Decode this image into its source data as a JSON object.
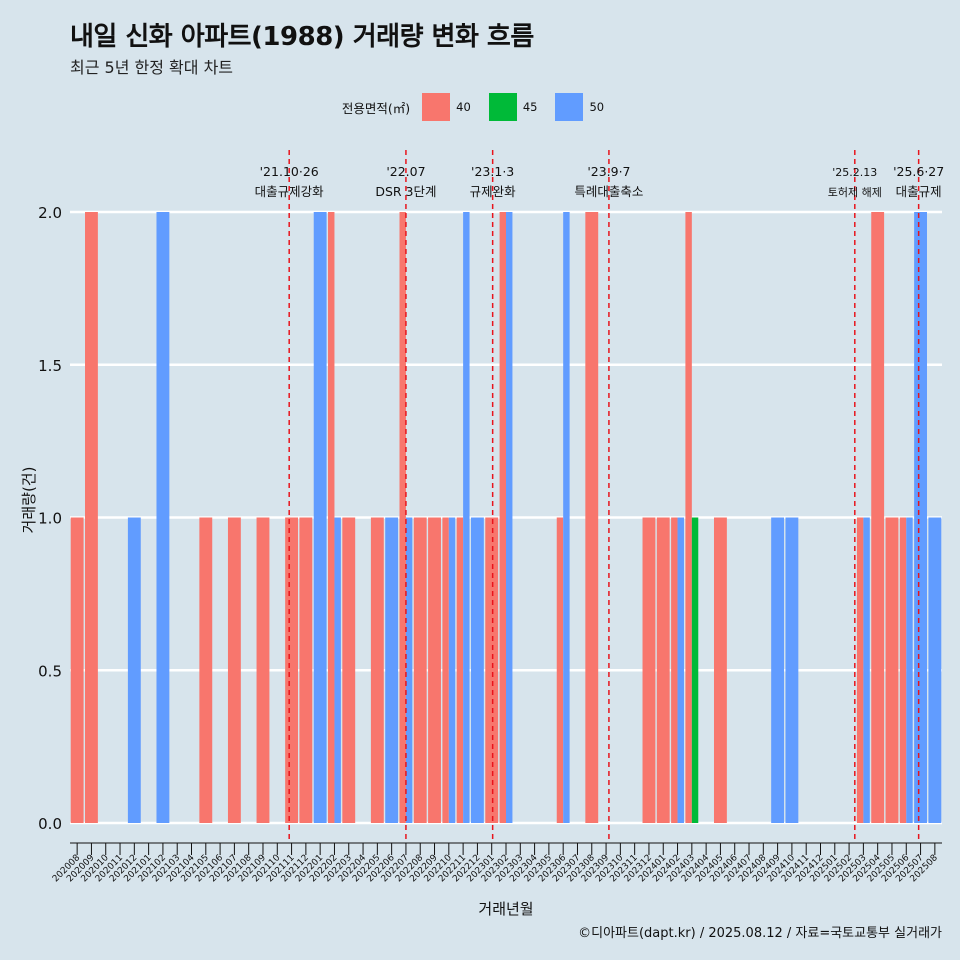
{
  "header": {
    "title": "내일 신화 아파트(1988) 거래량 변화 흐름",
    "subtitle": "최근 5년 한정 확대 차트"
  },
  "legend": {
    "title": "전용면적(㎡)",
    "items": [
      {
        "label": "40",
        "color": "#F8766D"
      },
      {
        "label": "45",
        "color": "#00BA38"
      },
      {
        "label": "50",
        "color": "#619CFF"
      }
    ]
  },
  "caption": "©디아파트(dapt.kr) / 2025.08.12 / 자료=국토교통부 실거래가",
  "chart_data": {
    "type": "bar",
    "xlabel": "거래년월",
    "ylabel": "거래량(건)",
    "ylim": [
      0,
      2.0
    ],
    "yticks": [
      "0.0",
      "0.5",
      "1.0",
      "1.5",
      "2.0"
    ],
    "grid": "horizontal",
    "legend_position": "top",
    "categories": [
      "202008",
      "202009",
      "202010",
      "202011",
      "202012",
      "202101",
      "202102",
      "202103",
      "202104",
      "202105",
      "202106",
      "202107",
      "202108",
      "202109",
      "202110",
      "202111",
      "202112",
      "202201",
      "202202",
      "202203",
      "202204",
      "202205",
      "202206",
      "202207",
      "202208",
      "202209",
      "202210",
      "202211",
      "202212",
      "202301",
      "202302",
      "202303",
      "202304",
      "202305",
      "202306",
      "202307",
      "202308",
      "202309",
      "202310",
      "202311",
      "202312",
      "202401",
      "202402",
      "202403",
      "202404",
      "202405",
      "202406",
      "202407",
      "202408",
      "202409",
      "202410",
      "202411",
      "202412",
      "202501",
      "202502",
      "202503",
      "202504",
      "202505",
      "202506",
      "202507",
      "202508"
    ],
    "series": [
      {
        "name": "40",
        "color": "#F8766D",
        "values": [
          1,
          2,
          0,
          0,
          0,
          0,
          0,
          0,
          0,
          1,
          0,
          1,
          0,
          1,
          0,
          1,
          1,
          0,
          2,
          1,
          0,
          1,
          0,
          2,
          1,
          1,
          1,
          1,
          0,
          1,
          2,
          0,
          0,
          0,
          1,
          0,
          2,
          0,
          0,
          0,
          1,
          1,
          1,
          2,
          0,
          1,
          0,
          0,
          0,
          0,
          0,
          0,
          0,
          0,
          0,
          1,
          2,
          1,
          1,
          0,
          0
        ]
      },
      {
        "name": "45",
        "color": "#00BA38",
        "values": [
          0,
          0,
          0,
          0,
          0,
          0,
          0,
          0,
          0,
          0,
          0,
          0,
          0,
          0,
          0,
          0,
          0,
          0,
          0,
          0,
          0,
          0,
          0,
          0,
          0,
          0,
          0,
          0,
          0,
          0,
          0,
          0,
          0,
          0,
          0,
          0,
          0,
          0,
          0,
          0,
          0,
          0,
          0,
          1,
          0,
          0,
          0,
          0,
          0,
          0,
          0,
          0,
          0,
          0,
          0,
          0,
          0,
          0,
          0,
          0,
          0
        ]
      },
      {
        "name": "50",
        "color": "#619CFF",
        "values": [
          0,
          0,
          0,
          0,
          1,
          0,
          2,
          0,
          0,
          0,
          0,
          0,
          0,
          0,
          0,
          0,
          0,
          2,
          1,
          0,
          0,
          0,
          1,
          1,
          0,
          0,
          1,
          2,
          1,
          0,
          2,
          0,
          0,
          0,
          2,
          0,
          0,
          0,
          0,
          0,
          0,
          0,
          1,
          0,
          0,
          0,
          0,
          0,
          0,
          1,
          1,
          0,
          0,
          0,
          0,
          1,
          0,
          0,
          1,
          2,
          1
        ]
      }
    ],
    "annotations": [
      {
        "date": "2021-10-26",
        "label1": "'21.10·26",
        "label2": "대출규제강화"
      },
      {
        "date": "2022-07",
        "label1": "'22.07",
        "label2": "DSR 3단계"
      },
      {
        "date": "2023-01-03",
        "label1": "'23.1·3",
        "label2": "규제완화"
      },
      {
        "date": "2023-09-07",
        "label1": "'23.9·7",
        "label2": "특례대출축소"
      },
      {
        "date": "2025-02-13",
        "label1": "'25.2.13",
        "label2": "토허제 해제"
      },
      {
        "date": "2025-06-27",
        "label1": "'25.6·27",
        "label2": "대출규제"
      }
    ]
  }
}
